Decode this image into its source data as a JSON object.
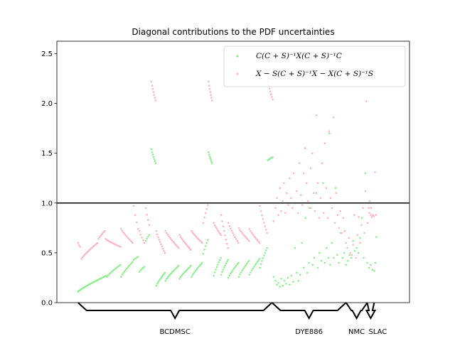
{
  "chart_data": {
    "type": "scatter",
    "title": "Diagonal contributions to the PDF uncertainties",
    "xlabel": "",
    "ylabel": "",
    "xlim": [
      0,
      100
    ],
    "ylim": [
      0,
      2.625
    ],
    "y_ticks": [
      0.0,
      0.5,
      1.0,
      1.5,
      2.0,
      2.5
    ],
    "y_tick_labels": [
      "0.0",
      "0.5",
      "1.0",
      "1.5",
      "2.0",
      "2.5"
    ],
    "reference_line": 1.0,
    "grid": false,
    "legend_position": "top-right",
    "groups": [
      {
        "label": "BCDMSC",
        "start": 6,
        "end": 61
      },
      {
        "label": "DYE886",
        "start": 61,
        "end": 82
      },
      {
        "label": "NMC",
        "start": 82,
        "end": 88
      },
      {
        "label": "SLAC",
        "start": 88,
        "end": 90
      }
    ],
    "series": [
      {
        "name": "$C(C+S)^{-1}X(C+S)^{-1}C$",
        "color": "#90ee90",
        "segments": [
          {
            "x_start": 6.0,
            "x_end": 14.0,
            "y_start": 0.11,
            "y_end": 0.27,
            "n": 34
          },
          {
            "x_start": 14.2,
            "x_end": 18.0,
            "y_start": 0.26,
            "y_end": 0.38,
            "n": 12
          },
          {
            "x_start": 18.2,
            "x_end": 21.5,
            "y_start": 0.26,
            "y_end": 0.41,
            "n": 11
          },
          {
            "x_start": 21.8,
            "x_end": 23.0,
            "y_start": 0.43,
            "y_end": 0.46,
            "n": 4
          },
          {
            "x_start": 23.4,
            "x_end": 24.8,
            "y_start": 0.31,
            "y_end": 0.36,
            "n": 5
          },
          {
            "x_start": 25.2,
            "x_end": 26.2,
            "y_start": 0.62,
            "y_end": 0.68,
            "n": 4
          },
          {
            "x_start": 26.8,
            "x_end": 28.0,
            "y_start": 1.54,
            "y_end": 1.4,
            "n": 7
          },
          {
            "x_start": 28.2,
            "x_end": 30.6,
            "y_start": 0.17,
            "y_end": 0.3,
            "n": 10
          },
          {
            "x_start": 30.8,
            "x_end": 34.5,
            "y_start": 0.22,
            "y_end": 0.37,
            "n": 13
          },
          {
            "x_start": 34.8,
            "x_end": 38.0,
            "y_start": 0.24,
            "y_end": 0.37,
            "n": 12
          },
          {
            "x_start": 38.2,
            "x_end": 41.2,
            "y_start": 0.26,
            "y_end": 0.4,
            "n": 11
          },
          {
            "x_start": 41.5,
            "x_end": 42.8,
            "y_start": 0.49,
            "y_end": 0.63,
            "n": 5
          },
          {
            "x_start": 43.0,
            "x_end": 44.0,
            "y_start": 1.51,
            "y_end": 1.4,
            "n": 7
          },
          {
            "x_start": 44.5,
            "x_end": 46.5,
            "y_start": 0.27,
            "y_end": 0.45,
            "n": 8
          },
          {
            "x_start": 46.6,
            "x_end": 48.5,
            "y_start": 0.28,
            "y_end": 0.43,
            "n": 8
          },
          {
            "x_start": 48.6,
            "x_end": 51.5,
            "y_start": 0.25,
            "y_end": 0.4,
            "n": 10
          },
          {
            "x_start": 51.6,
            "x_end": 54.5,
            "y_start": 0.26,
            "y_end": 0.42,
            "n": 10
          },
          {
            "x_start": 54.6,
            "x_end": 57.5,
            "y_start": 0.28,
            "y_end": 0.44,
            "n": 10
          },
          {
            "x_start": 57.6,
            "x_end": 59.6,
            "y_start": 0.35,
            "y_end": 0.55,
            "n": 8
          },
          {
            "x_start": 59.8,
            "x_end": 61.2,
            "y_start": 1.43,
            "y_end": 1.46,
            "n": 7
          }
        ],
        "scatter": [
          [
            61.5,
            0.26
          ],
          [
            62,
            0.22
          ],
          [
            62.4,
            0.18
          ],
          [
            62.8,
            0.2
          ],
          [
            63.2,
            0.16
          ],
          [
            63.6,
            0.24
          ],
          [
            64,
            0.17
          ],
          [
            64.5,
            0.22
          ],
          [
            65,
            0.19
          ],
          [
            65.5,
            0.25
          ],
          [
            66,
            0.18
          ],
          [
            66.5,
            0.27
          ],
          [
            67,
            0.21
          ],
          [
            67.5,
            0.55
          ],
          [
            68,
            0.3
          ],
          [
            68.5,
            0.22
          ],
          [
            69,
            0.28
          ],
          [
            69.5,
            0.6
          ],
          [
            70,
            0.35
          ],
          [
            70.5,
            0.85
          ],
          [
            71,
            0.3
          ],
          [
            71.5,
            0.4
          ],
          [
            72,
            0.95
          ],
          [
            72.5,
            0.38
          ],
          [
            73,
            0.45
          ],
          [
            73.5,
            1.1
          ],
          [
            74,
            0.35
          ],
          [
            74.5,
            0.5
          ],
          [
            75,
            0.42
          ],
          [
            75.5,
            1.2
          ],
          [
            76,
            0.4
          ],
          [
            76.5,
            0.55
          ],
          [
            77,
            0.45
          ],
          [
            77.3,
            1.7
          ],
          [
            77.5,
            0.38
          ],
          [
            78,
            0.6
          ],
          [
            78.5,
            0.45
          ],
          [
            79,
            1.15
          ],
          [
            79.5,
            0.48
          ],
          [
            80,
            0.4
          ],
          [
            80.5,
            0.7
          ],
          [
            81,
            0.45
          ],
          [
            81.5,
            0.5
          ],
          [
            82,
            0.38
          ],
          [
            82.5,
            0.42
          ],
          [
            83,
            0.48
          ],
          [
            83.5,
            0.45
          ],
          [
            84,
            0.62
          ],
          [
            84.5,
            0.52
          ],
          [
            85,
            0.55
          ],
          [
            85.5,
            0.5
          ],
          [
            86,
            0.65
          ],
          [
            86.5,
            0.85
          ],
          [
            87,
            0.45
          ],
          [
            87.5,
            1.3
          ],
          [
            88,
            0.4
          ],
          [
            88.5,
            0.35
          ],
          [
            89,
            0.38
          ],
          [
            89.5,
            0.33
          ],
          [
            90,
            0.32
          ],
          [
            90.3,
            0.4
          ],
          [
            90.6,
            0.66
          ]
        ]
      },
      {
        "name": "$X - S(C+S)^{-1}X - X(C+S)^{-1}S$",
        "color": "#ffb6c1",
        "segments": [
          {
            "x_start": 6.0,
            "x_end": 6.6,
            "y_start": 0.6,
            "y_end": 0.56,
            "n": 3
          },
          {
            "x_start": 7.0,
            "x_end": 11.5,
            "y_start": 0.44,
            "y_end": 0.6,
            "n": 16
          },
          {
            "x_start": 11.8,
            "x_end": 13.6,
            "y_start": 0.64,
            "y_end": 0.72,
            "n": 7
          },
          {
            "x_start": 13.8,
            "x_end": 18.0,
            "y_start": 0.64,
            "y_end": 0.56,
            "n": 14
          },
          {
            "x_start": 18.2,
            "x_end": 21.5,
            "y_start": 0.74,
            "y_end": 0.6,
            "n": 11
          },
          {
            "x_start": 21.8,
            "x_end": 23.0,
            "y_start": 0.97,
            "y_end": 0.74,
            "n": 4
          },
          {
            "x_start": 23.4,
            "x_end": 24.8,
            "y_start": 0.72,
            "y_end": 0.6,
            "n": 5
          },
          {
            "x_start": 25.2,
            "x_end": 26.2,
            "y_start": 0.95,
            "y_end": 0.78,
            "n": 4
          },
          {
            "x_start": 26.8,
            "x_end": 28.0,
            "y_start": 2.22,
            "y_end": 2.03,
            "n": 7
          },
          {
            "x_start": 28.2,
            "x_end": 30.6,
            "y_start": 0.72,
            "y_end": 0.5,
            "n": 10
          },
          {
            "x_start": 30.8,
            "x_end": 34.5,
            "y_start": 0.72,
            "y_end": 0.55,
            "n": 13
          },
          {
            "x_start": 34.8,
            "x_end": 38.0,
            "y_start": 0.68,
            "y_end": 0.53,
            "n": 12
          },
          {
            "x_start": 38.2,
            "x_end": 41.2,
            "y_start": 0.72,
            "y_end": 0.6,
            "n": 11
          },
          {
            "x_start": 41.5,
            "x_end": 42.8,
            "y_start": 0.8,
            "y_end": 0.98,
            "n": 5
          },
          {
            "x_start": 43.0,
            "x_end": 44.0,
            "y_start": 2.22,
            "y_end": 2.03,
            "n": 7
          },
          {
            "x_start": 44.5,
            "x_end": 46.5,
            "y_start": 0.8,
            "y_end": 0.68,
            "n": 8
          },
          {
            "x_start": 46.6,
            "x_end": 48.5,
            "y_start": 0.88,
            "y_end": 0.55,
            "n": 8
          },
          {
            "x_start": 48.6,
            "x_end": 51.5,
            "y_start": 0.8,
            "y_end": 0.6,
            "n": 10
          },
          {
            "x_start": 51.6,
            "x_end": 54.5,
            "y_start": 0.75,
            "y_end": 0.62,
            "n": 10
          },
          {
            "x_start": 54.6,
            "x_end": 57.5,
            "y_start": 0.74,
            "y_end": 0.6,
            "n": 10
          },
          {
            "x_start": 57.6,
            "x_end": 59.6,
            "y_start": 0.97,
            "y_end": 0.7,
            "n": 8
          },
          {
            "x_start": 59.8,
            "x_end": 61.2,
            "y_start": 2.22,
            "y_end": 2.04,
            "n": 7
          }
        ],
        "scatter": [
          [
            61.5,
            0.82
          ],
          [
            62,
            0.95
          ],
          [
            62.4,
            1.05
          ],
          [
            62.8,
            0.88
          ],
          [
            63.2,
            1.15
          ],
          [
            63.6,
            0.92
          ],
          [
            64,
            1.02
          ],
          [
            64.4,
            1.2
          ],
          [
            64.8,
            0.9
          ],
          [
            65.2,
            1.1
          ],
          [
            65.6,
            0.98
          ],
          [
            66,
            1.25
          ],
          [
            66.4,
            1.05
          ],
          [
            66.8,
            0.95
          ],
          [
            67.2,
            1.3
          ],
          [
            67.6,
            1.0
          ],
          [
            68,
            1.12
          ],
          [
            68.4,
            0.9
          ],
          [
            68.8,
            1.4
          ],
          [
            69.2,
            1.08
          ],
          [
            69.6,
            0.98
          ],
          [
            70,
            1.3
          ],
          [
            70.4,
            1.55
          ],
          [
            70.8,
            1.2
          ],
          [
            71.2,
            1.02
          ],
          [
            71.6,
            0.95
          ],
          [
            72,
            1.35
          ],
          [
            72.4,
            1.5
          ],
          [
            72.8,
            1.1
          ],
          [
            73.2,
            0.92
          ],
          [
            73.6,
            1.88
          ],
          [
            74,
            1.2
          ],
          [
            74.4,
            0.85
          ],
          [
            74.8,
            1.05
          ],
          [
            75.2,
            1.4
          ],
          [
            75.6,
            0.9
          ],
          [
            76,
            1.6
          ],
          [
            76.4,
            1.15
          ],
          [
            76.8,
            0.85
          ],
          [
            77.2,
            1.72
          ],
          [
            77.6,
            1.05
          ],
          [
            78,
            0.95
          ],
          [
            78.4,
            1.86
          ],
          [
            78.8,
            0.8
          ],
          [
            79.2,
            1.1
          ],
          [
            79.6,
            0.88
          ],
          [
            80,
            0.75
          ],
          [
            80.4,
            0.92
          ],
          [
            80.8,
            0.7
          ],
          [
            81.2,
            0.85
          ],
          [
            81.6,
            0.72
          ],
          [
            82,
            0.6
          ],
          [
            82.4,
            0.55
          ],
          [
            82.8,
            0.65
          ],
          [
            83.2,
            0.5
          ],
          [
            83.6,
            0.48
          ],
          [
            84,
            0.58
          ],
          [
            84.4,
            0.88
          ],
          [
            84.8,
            0.45
          ],
          [
            85.2,
            0.68
          ],
          [
            85.6,
            0.86
          ],
          [
            86,
            0.6
          ],
          [
            86.4,
            0.78
          ],
          [
            86.8,
            0.95
          ],
          [
            87.2,
            0.7
          ],
          [
            87.5,
            1.12
          ],
          [
            87.8,
            2.02
          ],
          [
            88.1,
            0.8
          ],
          [
            88.4,
            0.95
          ],
          [
            88.7,
            1.02
          ],
          [
            89,
            0.88
          ],
          [
            89.3,
            0.86
          ],
          [
            89.6,
            0.88
          ],
          [
            89.9,
            0.87
          ],
          [
            90.2,
            1.31
          ],
          [
            90.5,
            0.88
          ],
          [
            88.6,
            0.9
          ],
          [
            89.1,
            0.95
          ]
        ]
      }
    ]
  }
}
